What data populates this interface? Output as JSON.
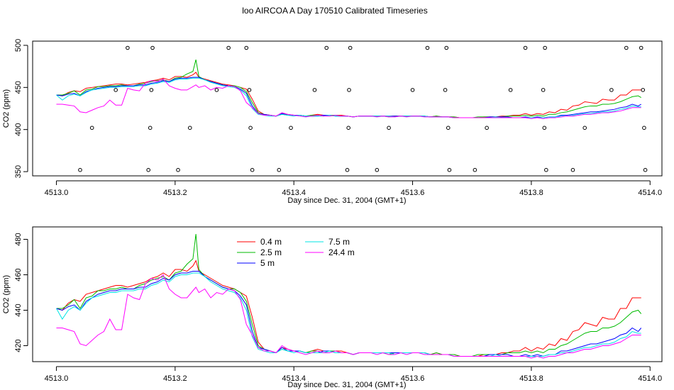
{
  "title": "loo AIRCOA A  Day 170510  Calibrated Timeseries",
  "colors": {
    "0.4 m": "#ff0000",
    "2.5 m": "#00bb00",
    "5 m": "#0000ff",
    "7.5 m": "#00e5e5",
    "24.4 m": "#ff00ff"
  },
  "chart_data": [
    {
      "type": "scatter+line",
      "xlabel": "Day since Dec. 31, 2004 (GMT+1)",
      "ylabel": "CO2 (ppm)",
      "xlim": [
        4512.96,
        4514.02
      ],
      "ylim": [
        345,
        505
      ],
      "xticks": [
        4513.0,
        4513.2,
        4513.4,
        4513.6,
        4513.8,
        4514.0
      ],
      "xtick_labels": [
        "4513.0",
        "4513.2",
        "4513.4",
        "4513.6",
        "4513.8",
        "4514.0"
      ],
      "yticks": [
        350,
        400,
        450,
        500
      ],
      "ytick_labels": [
        "350",
        "400",
        "450",
        "500"
      ],
      "line_series_source": "panel2",
      "markers": [
        {
          "x": 4513.04,
          "y": 352
        },
        {
          "x": 4513.06,
          "y": 402
        },
        {
          "x": 4513.1,
          "y": 447
        },
        {
          "x": 4513.12,
          "y": 497
        },
        {
          "x": 4513.155,
          "y": 352
        },
        {
          "x": 4513.158,
          "y": 402
        },
        {
          "x": 4513.16,
          "y": 447
        },
        {
          "x": 4513.162,
          "y": 497
        },
        {
          "x": 4513.205,
          "y": 352
        },
        {
          "x": 4513.225,
          "y": 402
        },
        {
          "x": 4513.27,
          "y": 447
        },
        {
          "x": 4513.29,
          "y": 497
        },
        {
          "x": 4513.32,
          "y": 497
        },
        {
          "x": 4513.325,
          "y": 447
        },
        {
          "x": 4513.327,
          "y": 402
        },
        {
          "x": 4513.33,
          "y": 352
        },
        {
          "x": 4513.375,
          "y": 352
        },
        {
          "x": 4513.395,
          "y": 402
        },
        {
          "x": 4513.435,
          "y": 447
        },
        {
          "x": 4513.455,
          "y": 497
        },
        {
          "x": 4513.49,
          "y": 352
        },
        {
          "x": 4513.492,
          "y": 402
        },
        {
          "x": 4513.493,
          "y": 447
        },
        {
          "x": 4513.495,
          "y": 497
        },
        {
          "x": 4513.54,
          "y": 352
        },
        {
          "x": 4513.56,
          "y": 402
        },
        {
          "x": 4513.6,
          "y": 447
        },
        {
          "x": 4513.625,
          "y": 497
        },
        {
          "x": 4513.655,
          "y": 447
        },
        {
          "x": 4513.657,
          "y": 497
        },
        {
          "x": 4513.66,
          "y": 402
        },
        {
          "x": 4513.662,
          "y": 352
        },
        {
          "x": 4513.705,
          "y": 352
        },
        {
          "x": 4513.725,
          "y": 402
        },
        {
          "x": 4513.765,
          "y": 447
        },
        {
          "x": 4513.79,
          "y": 497
        },
        {
          "x": 4513.82,
          "y": 447
        },
        {
          "x": 4513.822,
          "y": 402
        },
        {
          "x": 4513.823,
          "y": 497
        },
        {
          "x": 4513.825,
          "y": 352
        },
        {
          "x": 4513.87,
          "y": 352
        },
        {
          "x": 4513.89,
          "y": 402
        },
        {
          "x": 4513.935,
          "y": 447
        },
        {
          "x": 4513.96,
          "y": 497
        },
        {
          "x": 4513.985,
          "y": 497
        },
        {
          "x": 4513.988,
          "y": 447
        },
        {
          "x": 4513.99,
          "y": 402
        },
        {
          "x": 4513.992,
          "y": 352
        }
      ]
    },
    {
      "type": "line",
      "xlabel": "Day since Dec. 31, 2004 (GMT+1)",
      "ylabel": "CO2 (ppm)",
      "xlim": [
        4512.96,
        4514.02
      ],
      "ylim": [
        411,
        487
      ],
      "xticks": [
        4513.0,
        4513.2,
        4513.4,
        4513.6,
        4513.8,
        4514.0
      ],
      "xtick_labels": [
        "4513.0",
        "4513.2",
        "4513.4",
        "4513.6",
        "4513.8",
        "4514.0"
      ],
      "yticks": [
        420,
        440,
        460,
        480
      ],
      "ytick_labels": [
        "420",
        "440",
        "460",
        "480"
      ],
      "legend": {
        "placement": "top-center",
        "entries": [
          "0.4 m",
          "2.5 m",
          "5 m",
          "7.5 m",
          "24.4 m"
        ]
      },
      "x": [
        4513.0,
        4513.01,
        4513.02,
        4513.03,
        4513.04,
        4513.05,
        4513.06,
        4513.07,
        4513.08,
        4513.09,
        4513.1,
        4513.11,
        4513.12,
        4513.13,
        4513.14,
        4513.15,
        4513.16,
        4513.17,
        4513.18,
        4513.19,
        4513.2,
        4513.21,
        4513.22,
        4513.23,
        4513.235,
        4513.24,
        4513.25,
        4513.26,
        4513.27,
        4513.28,
        4513.29,
        4513.3,
        4513.31,
        4513.32,
        4513.33,
        4513.34,
        4513.35,
        4513.36,
        4513.37,
        4513.38,
        4513.39,
        4513.4,
        4513.41,
        4513.42,
        4513.43,
        4513.44,
        4513.45,
        4513.46,
        4513.47,
        4513.48,
        4513.49,
        4513.5,
        4513.51,
        4513.52,
        4513.53,
        4513.54,
        4513.55,
        4513.56,
        4513.57,
        4513.58,
        4513.59,
        4513.6,
        4513.61,
        4513.62,
        4513.63,
        4513.64,
        4513.65,
        4513.66,
        4513.67,
        4513.68,
        4513.69,
        4513.7,
        4513.71,
        4513.72,
        4513.73,
        4513.74,
        4513.75,
        4513.76,
        4513.77,
        4513.78,
        4513.79,
        4513.8,
        4513.81,
        4513.82,
        4513.83,
        4513.84,
        4513.85,
        4513.86,
        4513.87,
        4513.88,
        4513.89,
        4513.9,
        4513.91,
        4513.92,
        4513.93,
        4513.94,
        4513.95,
        4513.96,
        4513.97,
        4513.98,
        4513.985
      ],
      "series": [
        {
          "name": "0.4 m",
          "values": [
            441,
            440,
            444,
            446,
            445,
            449,
            450,
            451,
            452,
            453,
            454,
            454,
            453,
            454,
            455,
            456,
            458,
            459,
            461,
            459,
            463,
            463,
            462,
            465,
            468,
            462,
            460,
            458,
            456,
            454,
            453,
            452,
            450,
            448,
            436,
            422,
            418,
            417,
            416,
            419,
            418,
            417,
            417,
            416,
            417,
            418,
            417,
            417,
            417,
            417,
            416,
            415,
            416,
            416,
            416,
            416,
            416,
            416,
            416,
            416,
            416,
            416,
            416,
            416,
            415,
            416,
            415,
            415,
            415,
            414,
            414,
            414,
            414,
            415,
            415,
            415,
            416,
            416,
            417,
            417,
            419,
            417,
            419,
            418,
            421,
            420,
            424,
            423,
            428,
            429,
            433,
            432,
            431,
            436,
            435,
            435,
            441,
            441,
            447,
            447,
            447
          ]
        },
        {
          "name": "2.5 m",
          "values": [
            441,
            441,
            443,
            446,
            441,
            447,
            448,
            451,
            451,
            452,
            452,
            453,
            452,
            452,
            454,
            455,
            457,
            458,
            459,
            457,
            461,
            462,
            466,
            469,
            483,
            463,
            459,
            457,
            455,
            453,
            452,
            452,
            450,
            445,
            432,
            420,
            418,
            417,
            416,
            418,
            417,
            417,
            417,
            416,
            417,
            417,
            416,
            417,
            417,
            416,
            416,
            415,
            416,
            416,
            416,
            416,
            416,
            415,
            416,
            416,
            416,
            416,
            416,
            416,
            415,
            416,
            415,
            415,
            415,
            414,
            414,
            414,
            415,
            415,
            415,
            415,
            415,
            416,
            416,
            416,
            417,
            416,
            417,
            416,
            418,
            418,
            420,
            421,
            423,
            425,
            427,
            428,
            428,
            430,
            430,
            431,
            433,
            436,
            439,
            440,
            438
          ]
        },
        {
          "name": "5 m",
          "values": [
            441,
            440,
            442,
            443,
            440,
            445,
            447,
            449,
            450,
            451,
            451,
            452,
            452,
            452,
            453,
            453,
            455,
            456,
            458,
            457,
            460,
            461,
            461,
            462,
            462,
            462,
            459,
            457,
            455,
            453,
            452,
            451,
            448,
            443,
            428,
            419,
            418,
            417,
            416,
            419,
            417,
            417,
            417,
            416,
            416,
            416,
            417,
            417,
            416,
            416,
            416,
            415,
            416,
            416,
            416,
            416,
            416,
            416,
            416,
            416,
            416,
            416,
            416,
            416,
            415,
            415,
            415,
            415,
            414,
            414,
            414,
            414,
            414,
            414,
            415,
            415,
            415,
            415,
            414,
            414,
            415,
            414,
            415,
            414,
            415,
            415,
            417,
            417,
            418,
            419,
            420,
            421,
            421,
            422,
            423,
            424,
            426,
            427,
            430,
            428,
            430
          ]
        },
        {
          "name": "7.5 m",
          "values": [
            441,
            435,
            440,
            442,
            440,
            444,
            447,
            448,
            449,
            450,
            450,
            451,
            451,
            451,
            452,
            452,
            454,
            455,
            457,
            456,
            459,
            460,
            460,
            461,
            461,
            461,
            459,
            456,
            454,
            452,
            451,
            450,
            447,
            440,
            425,
            418,
            417,
            416,
            416,
            418,
            417,
            416,
            417,
            416,
            416,
            416,
            416,
            417,
            416,
            416,
            416,
            415,
            416,
            416,
            416,
            416,
            416,
            416,
            415,
            416,
            416,
            416,
            416,
            416,
            415,
            415,
            415,
            415,
            414,
            414,
            414,
            414,
            414,
            414,
            414,
            415,
            414,
            414,
            414,
            414,
            414,
            414,
            414,
            414,
            415,
            415,
            416,
            416,
            417,
            418,
            419,
            419,
            420,
            421,
            421,
            422,
            424,
            425,
            428,
            427,
            427
          ]
        },
        {
          "name": "24.4 m",
          "values": [
            430,
            430,
            429,
            428,
            421,
            420,
            423,
            426,
            428,
            435,
            429,
            429,
            449,
            447,
            446,
            455,
            458,
            457,
            460,
            452,
            449,
            447,
            447,
            451,
            453,
            450,
            452,
            447,
            450,
            449,
            452,
            451,
            446,
            432,
            426,
            419,
            417,
            417,
            416,
            420,
            418,
            417,
            416,
            415,
            416,
            417,
            416,
            416,
            417,
            416,
            416,
            415,
            416,
            416,
            416,
            415,
            416,
            415,
            415,
            416,
            415,
            416,
            416,
            415,
            415,
            415,
            415,
            415,
            414,
            414,
            414,
            414,
            414,
            414,
            414,
            414,
            414,
            414,
            414,
            414,
            414,
            413,
            414,
            413,
            414,
            414,
            415,
            416,
            416,
            417,
            418,
            418,
            419,
            420,
            420,
            421,
            422,
            424,
            426,
            426,
            426
          ]
        }
      ]
    }
  ]
}
